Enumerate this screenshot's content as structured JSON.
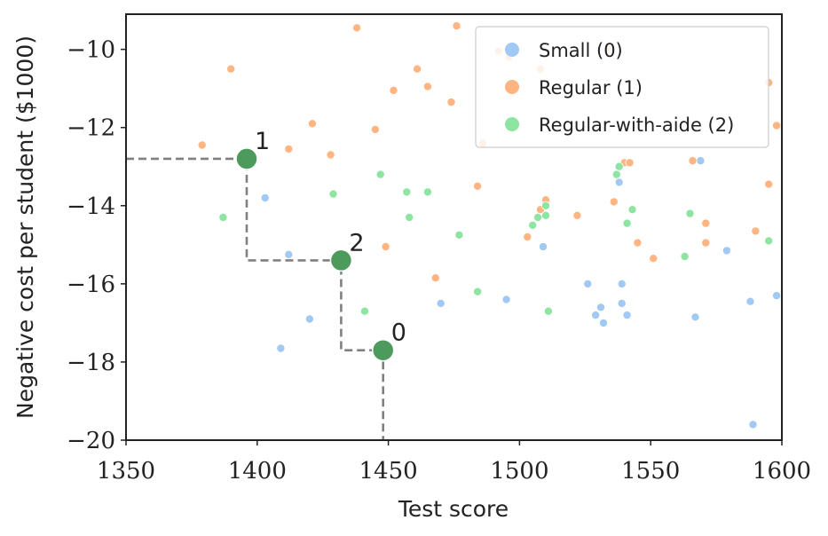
{
  "chart_data": {
    "type": "scatter",
    "xlabel": "Test score",
    "ylabel": "Negative cost per student ($1000)",
    "xlim": [
      1350,
      1600
    ],
    "ylim": [
      -20,
      -9.1
    ],
    "xticks": [
      "1350",
      "1400",
      "1450",
      "1500",
      "1550",
      "1600"
    ],
    "yticks": [
      "−20",
      "−18",
      "−16",
      "−14",
      "−12",
      "−10"
    ],
    "xtick_values": [
      1350,
      1400,
      1450,
      1500,
      1550,
      1600
    ],
    "ytick_values": [
      -20,
      -18,
      -16,
      -14,
      -12,
      -10
    ],
    "legend_position": "top-right",
    "series": [
      {
        "name": "Small (0)",
        "color": "#a1c9f4",
        "points": [
          [
            1403,
            -13.8
          ],
          [
            1412,
            -15.25
          ],
          [
            1409,
            -17.65
          ],
          [
            1420,
            -16.9
          ],
          [
            1470,
            -16.5
          ],
          [
            1495,
            -16.4
          ],
          [
            1509,
            -15.05
          ],
          [
            1526,
            -16.0
          ],
          [
            1529,
            -16.8
          ],
          [
            1531,
            -16.6
          ],
          [
            1532,
            -17.0
          ],
          [
            1538,
            -13.4
          ],
          [
            1539,
            -16.0
          ],
          [
            1539,
            -16.5
          ],
          [
            1541,
            -16.8
          ],
          [
            1567,
            -16.85
          ],
          [
            1569,
            -12.85
          ],
          [
            1579,
            -15.15
          ],
          [
            1588,
            -16.45
          ],
          [
            1589,
            -19.6
          ],
          [
            1598,
            -16.3
          ]
        ]
      },
      {
        "name": "Regular (1)",
        "color": "#ffb482",
        "points": [
          [
            1379,
            -12.45
          ],
          [
            1390,
            -10.5
          ],
          [
            1412,
            -12.55
          ],
          [
            1421,
            -11.9
          ],
          [
            1428,
            -12.7
          ],
          [
            1438,
            -9.45
          ],
          [
            1445,
            -12.05
          ],
          [
            1449,
            -15.05
          ],
          [
            1452,
            -11.05
          ],
          [
            1461,
            -10.5
          ],
          [
            1465,
            -10.95
          ],
          [
            1468,
            -15.85
          ],
          [
            1474,
            -11.35
          ],
          [
            1476,
            -9.4
          ],
          [
            1484,
            -13.5
          ],
          [
            1486,
            -12.4
          ],
          [
            1492,
            -10.05
          ],
          [
            1496,
            -10.2
          ],
          [
            1503,
            -14.8
          ],
          [
            1508,
            -10.5
          ],
          [
            1508,
            -14.1
          ],
          [
            1510,
            -13.85
          ],
          [
            1522,
            -14.25
          ],
          [
            1534,
            -9.95
          ],
          [
            1536,
            -13.9
          ],
          [
            1540,
            -12.9
          ],
          [
            1542,
            -12.9
          ],
          [
            1541,
            -14.45
          ],
          [
            1545,
            -14.95
          ],
          [
            1551,
            -15.35
          ],
          [
            1566,
            -12.85
          ],
          [
            1571,
            -14.45
          ],
          [
            1571,
            -14.95
          ],
          [
            1590,
            -14.65
          ],
          [
            1595,
            -10.85
          ],
          [
            1595,
            -13.45
          ],
          [
            1598,
            -11.95
          ]
        ]
      },
      {
        "name": "Regular-with-aide (2)",
        "color": "#8de5a1",
        "points": [
          [
            1387,
            -14.3
          ],
          [
            1429,
            -13.7
          ],
          [
            1441,
            -16.7
          ],
          [
            1447,
            -13.2
          ],
          [
            1457,
            -13.65
          ],
          [
            1458,
            -14.3
          ],
          [
            1465,
            -13.65
          ],
          [
            1477,
            -14.75
          ],
          [
            1484,
            -16.2
          ],
          [
            1505,
            -14.5
          ],
          [
            1507,
            -14.3
          ],
          [
            1510,
            -14.0
          ],
          [
            1510,
            -14.25
          ],
          [
            1511,
            -16.7
          ],
          [
            1537,
            -13.2
          ],
          [
            1538,
            -13.0
          ],
          [
            1541,
            -14.45
          ],
          [
            1543,
            -14.1
          ],
          [
            1563,
            -15.3
          ],
          [
            1565,
            -14.2
          ],
          [
            1595,
            -14.9
          ]
        ]
      }
    ],
    "frontier": {
      "color": "#4c9a5c",
      "line_color": "#808080",
      "points": [
        {
          "label": "1",
          "x": 1396,
          "y": -12.8
        },
        {
          "label": "2",
          "x": 1432,
          "y": -15.4
        },
        {
          "label": "0",
          "x": 1448,
          "y": -17.7
        }
      ]
    }
  }
}
